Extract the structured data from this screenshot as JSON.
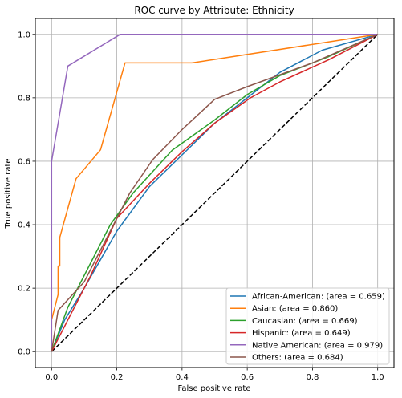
{
  "chart_data": {
    "type": "line",
    "title": "ROC curve by Attribute: Ethnicity",
    "xlabel": "False positive rate",
    "ylabel": "True positive rate",
    "xlim": [
      -0.05,
      1.05
    ],
    "ylim": [
      -0.05,
      1.05
    ],
    "xticks": [
      0.0,
      0.2,
      0.4,
      0.6,
      0.8,
      1.0
    ],
    "yticks": [
      0.0,
      0.2,
      0.4,
      0.6,
      0.8,
      1.0
    ],
    "tick_labels_x": [
      "0.0",
      "0.2",
      "0.4",
      "0.6",
      "0.8",
      "1.0"
    ],
    "tick_labels_y": [
      "0.0",
      "0.2",
      "0.4",
      "0.6",
      "0.8",
      "1.0"
    ],
    "grid": true,
    "legend_position": "lower-right",
    "reference_line": {
      "x": [
        0,
        1
      ],
      "y": [
        0,
        1
      ],
      "color": "#000000",
      "style": "dashed"
    },
    "series": [
      {
        "name": "African-American: (area = 0.659)",
        "color": "#1f77b4",
        "x": [
          0,
          0.04,
          0.1,
          0.2,
          0.3,
          0.4,
          0.5,
          0.6,
          0.7,
          0.83,
          1.0
        ],
        "y": [
          0,
          0.1,
          0.2,
          0.38,
          0.52,
          0.62,
          0.72,
          0.8,
          0.88,
          0.95,
          1.0
        ]
      },
      {
        "name": "Asian: (area = 0.860)",
        "color": "#ff7f0e",
        "x": [
          0,
          0.0,
          0.02,
          0.02,
          0.025,
          0.025,
          0.07,
          0.15,
          0.23,
          0.23,
          0.43,
          1.0
        ],
        "y": [
          0,
          0.1,
          0.18,
          0.27,
          0.27,
          0.36,
          0.545,
          0.636,
          0.91,
          0.91,
          0.91,
          1.0
        ],
        "x_draw": [
          0,
          0.0,
          0.02,
          0.02,
          0.025,
          0.025,
          0.075,
          0.15,
          0.225,
          0.23,
          0.43,
          1.0
        ]
      },
      {
        "name": "Caucasian: (area = 0.669)",
        "color": "#2ca02c",
        "x": [
          0,
          0.05,
          0.12,
          0.18,
          0.25,
          0.37,
          0.5,
          0.6,
          0.7,
          0.85,
          1.0
        ],
        "y": [
          0,
          0.14,
          0.28,
          0.4,
          0.5,
          0.635,
          0.73,
          0.81,
          0.87,
          0.93,
          1.0
        ]
      },
      {
        "name": "Hispanic: (area = 0.649)",
        "color": "#d62728",
        "x": [
          0,
          0.05,
          0.12,
          0.2,
          0.3,
          0.4,
          0.5,
          0.61,
          0.7,
          0.85,
          1.0
        ],
        "y": [
          0,
          0.1,
          0.24,
          0.42,
          0.53,
          0.63,
          0.72,
          0.8,
          0.85,
          0.92,
          1.0
        ]
      },
      {
        "name": "Native American: (area = 0.979)",
        "color": "#9467bd",
        "x": [
          0,
          0.0,
          0.05,
          0.21,
          0.22,
          1.0
        ],
        "y": [
          0,
          0.6,
          0.9,
          1.0,
          1.0,
          1.0
        ]
      },
      {
        "name": "Others: (area = 0.684)",
        "color": "#8c564b",
        "x": [
          0,
          0.02,
          0.1,
          0.2,
          0.24,
          0.31,
          0.4,
          0.5,
          0.6,
          0.8,
          1.0
        ],
        "y": [
          0,
          0.13,
          0.22,
          0.42,
          0.5,
          0.605,
          0.7,
          0.795,
          0.835,
          0.91,
          1.0
        ]
      }
    ]
  }
}
